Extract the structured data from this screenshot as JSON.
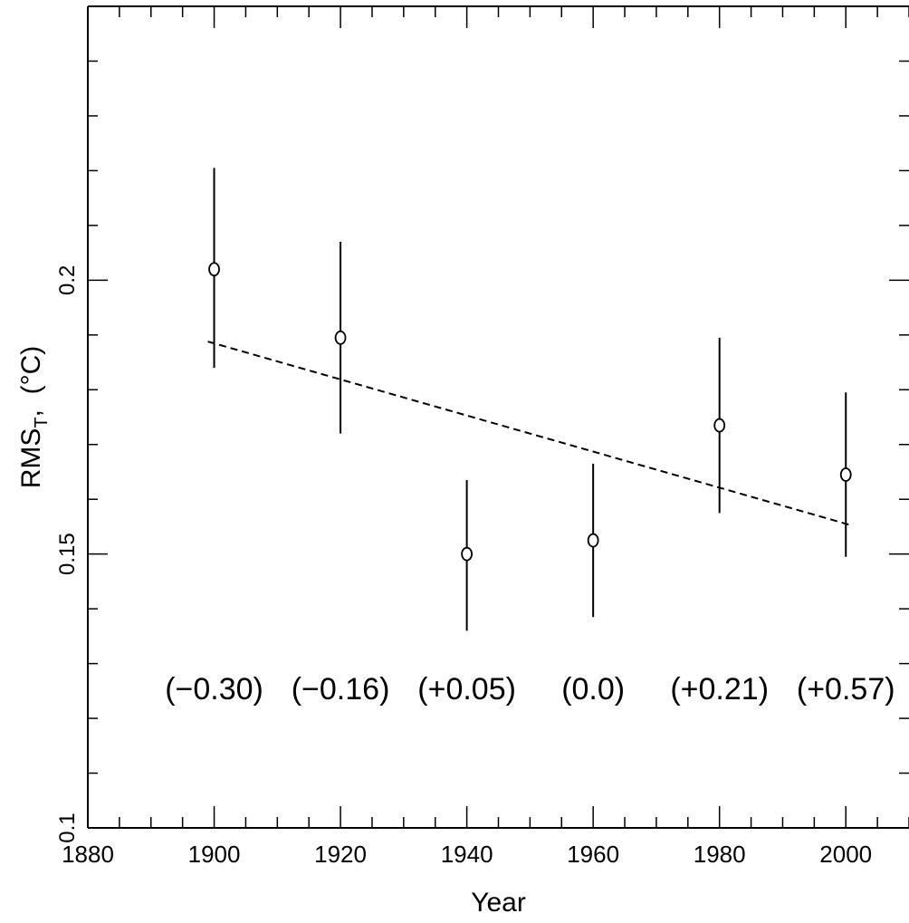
{
  "chart_data": {
    "type": "scatter",
    "title": "",
    "xlabel": "Year",
    "ylabel": "RMS",
    "ylabel_subscript": "T",
    "ylabel_unit": ",  (°C)",
    "xlim": [
      1880,
      2010
    ],
    "ylim": [
      0.1,
      0.25
    ],
    "x_ticks": [
      1880,
      1900,
      1920,
      1940,
      1960,
      1980,
      2000
    ],
    "x_tick_labels": [
      "1880",
      "1900",
      "1920",
      "1940",
      "1960",
      "1980",
      "2000"
    ],
    "x_minor_step": 5,
    "y_ticks": [
      0.1,
      0.15,
      0.2
    ],
    "y_tick_labels": [
      "0.1",
      "0.15",
      "0.2"
    ],
    "y_minor_step": 0.01,
    "grid": false,
    "legend": "none",
    "series": [
      {
        "marker": "open-circle",
        "x": [
          1900,
          1920,
          1940,
          1960,
          1980,
          2000
        ],
        "y": [
          0.202,
          0.1895,
          0.15,
          0.1525,
          0.1735,
          0.1645
        ],
        "err_low": [
          0.184,
          0.172,
          0.136,
          0.1385,
          0.1575,
          0.1495
        ],
        "err_high": [
          0.2205,
          0.207,
          0.1635,
          0.1665,
          0.1895,
          0.1795
        ]
      }
    ],
    "trend_line": {
      "style": "dashed",
      "x": [
        1899,
        2001
      ],
      "y": [
        0.1888,
        0.1552
      ]
    },
    "annotations": [
      {
        "x": 1900,
        "text": "(−0.30)"
      },
      {
        "x": 1920,
        "text": "(−0.16)"
      },
      {
        "x": 1940,
        "text": "(+0.05)"
      },
      {
        "x": 1960,
        "text": "(0.0)"
      },
      {
        "x": 1980,
        "text": "(+0.21)"
      },
      {
        "x": 2000,
        "text": "(+0.57)"
      }
    ],
    "annotation_y": 0.1235
  }
}
